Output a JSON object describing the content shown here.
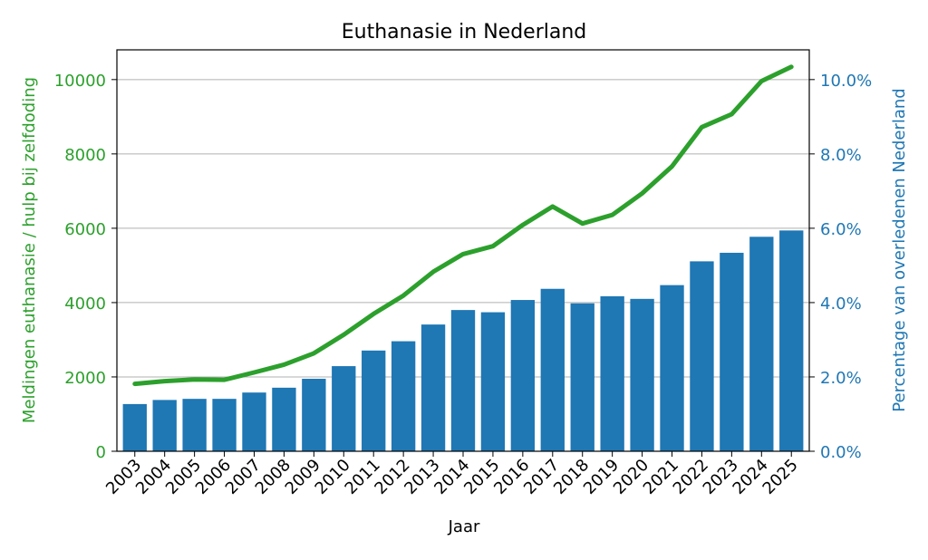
{
  "chart_data": {
    "type": "bar",
    "title": "Euthanasie in Nederland",
    "xlabel": "Jaar",
    "ylabel_left": "Meldingen euthanasie / hulp bij zelfdoding",
    "ylabel_right": "Percentage van overledenen Nederland",
    "categories": [
      "2003",
      "2004",
      "2005",
      "2006",
      "2007",
      "2008",
      "2009",
      "2010",
      "2011",
      "2012",
      "2013",
      "2014",
      "2015",
      "2016",
      "2017",
      "2018",
      "2019",
      "2020",
      "2021",
      "2022",
      "2023",
      "2024",
      "2025"
    ],
    "series": [
      {
        "name": "",
        "type": "line",
        "axis": "left",
        "color": "#2ca02c",
        "values": [
          1815,
          1886,
          1933,
          1923,
          2120,
          2331,
          2636,
          3136,
          3695,
          4188,
          4829,
          5306,
          5516,
          6091,
          6585,
          6126,
          6361,
          6938,
          7666,
          8720,
          9068,
          9958,
          10341
        ]
      },
      {
        "name": "",
        "type": "bar",
        "axis": "right",
        "color": "#1f77b4",
        "values": [
          1.27,
          1.38,
          1.41,
          1.41,
          1.58,
          1.71,
          1.95,
          2.29,
          2.71,
          2.96,
          3.41,
          3.8,
          3.74,
          4.07,
          4.37,
          3.98,
          4.17,
          4.1,
          4.47,
          5.11,
          5.34,
          5.77,
          5.94
        ]
      }
    ],
    "ylim_left": [
      0,
      10800
    ],
    "ylim_right": [
      0,
      10.8
    ],
    "yticks_left": [
      "0",
      "2000",
      "4000",
      "6000",
      "8000",
      "10000"
    ],
    "yticks_right": [
      "0.0%",
      "2.0%",
      "4.0%",
      "6.0%",
      "8.0%",
      "10.0%"
    ],
    "grid": "horizontal",
    "colors": {
      "left_axis": "#2ca02c",
      "right_axis": "#1f77b4",
      "grid": "#b0b0b0",
      "text": "#000000"
    }
  }
}
